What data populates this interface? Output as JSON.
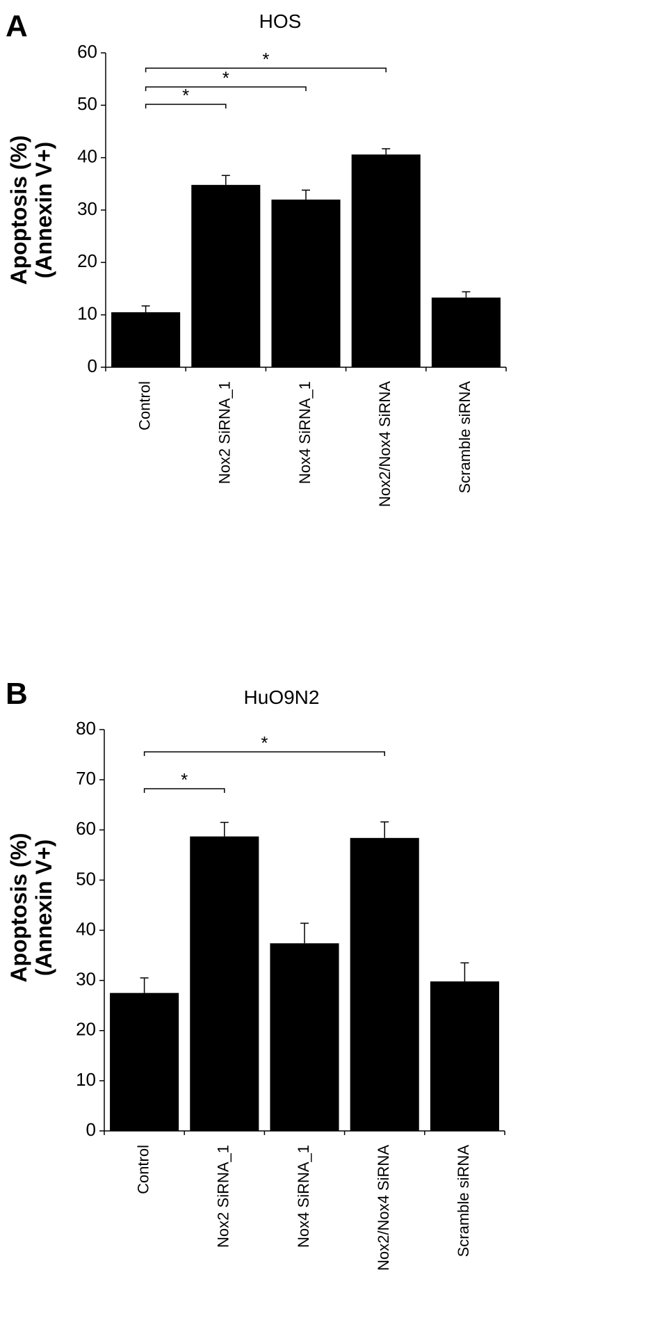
{
  "chart_data": [
    {
      "panel": "A",
      "type": "bar",
      "title": "HOS",
      "ylabel": "Apoptosis (%)",
      "ylabel_line2": "(Annexin V+)",
      "xlabel": "",
      "categories": [
        "Control",
        "Nox2 SiRNA_1",
        "Nox4 SiRNA_1",
        "Nox2/Nox4 SiRNA",
        "Scramble siRNA"
      ],
      "values": [
        10.5,
        34.8,
        32.0,
        40.6,
        13.3
      ],
      "errors": [
        1.2,
        1.8,
        1.8,
        1.1,
        1.1
      ],
      "ylim": [
        0,
        60
      ],
      "yticks": [
        0,
        10,
        20,
        30,
        40,
        50,
        60
      ],
      "bar_color": "#000000",
      "grid": false,
      "significance": [
        {
          "from": 0,
          "to": 1,
          "label": "*"
        },
        {
          "from": 0,
          "to": 2,
          "label": "*"
        },
        {
          "from": 0,
          "to": 3,
          "label": "*"
        }
      ]
    },
    {
      "panel": "B",
      "type": "bar",
      "title": "HuO9N2",
      "ylabel": "Apoptosis (%)",
      "ylabel_line2": "(Annexin V+)",
      "xlabel": "",
      "categories": [
        "Control",
        "Nox2 SiRNA_1",
        "Nox4 SiRNA_1",
        "Nox2/Nox4 SiRNA",
        "Scramble siRNA"
      ],
      "values": [
        27.5,
        58.7,
        37.4,
        58.4,
        29.8
      ],
      "errors": [
        3.0,
        2.8,
        4.0,
        3.2,
        3.7
      ],
      "ylim": [
        0,
        80
      ],
      "yticks": [
        0,
        10,
        20,
        30,
        40,
        50,
        60,
        70,
        80
      ],
      "bar_color": "#000000",
      "grid": false,
      "significance": [
        {
          "from": 0,
          "to": 1,
          "label": "*"
        },
        {
          "from": 0,
          "to": 3,
          "label": "*"
        }
      ]
    }
  ]
}
